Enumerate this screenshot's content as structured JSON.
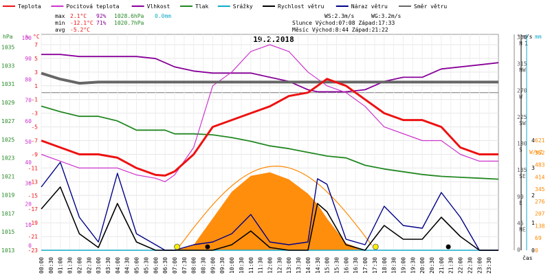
{
  "chart_data": {
    "type": "line",
    "title": "19.2.2018",
    "legend": [
      {
        "label": "Teplota",
        "color": "#ee1111"
      },
      {
        "label": "Pocitová teplota",
        "color": "#cc33cc"
      },
      {
        "label": "Vlhkost",
        "color": "#880099"
      },
      {
        "label": "Tlak",
        "color": "#228822"
      },
      {
        "label": "Srážky",
        "color": "#11aacc"
      },
      {
        "label": "Rychlost větru",
        "color": "#000000"
      },
      {
        "label": "Náraz větru",
        "color": "#000088"
      },
      {
        "label": "Směr větru",
        "color": "#666666"
      }
    ],
    "stats": {
      "max_label": "max",
      "max_temp": "2.1°C",
      "max_hum": "92%",
      "max_press": "1028.6hPa",
      "max_rain": "0.0mm",
      "min_label": "min",
      "min_temp": "-12.1°C",
      "min_hum": "71%",
      "min_press": "1020.7hPa",
      "avg_label": "avg",
      "avg_temp": "-5.2°C"
    },
    "sun_moon": {
      "ws": "WS:2.3m/s",
      "wg": "WG:3.2m/s",
      "sun": "Slunce Východ:07:08  Západ:17:33",
      "moon": "Měsíc  Východ:8:44   Západ:21:22"
    },
    "axes": {
      "hpa_label": "hPa",
      "pct_label": "%",
      "c_label": "°C",
      "deg_label": "°",
      "ms_label": "m/s",
      "mm_label": "mm",
      "wm2_label": "W/m2",
      "time_label": "čas",
      "hpa_ticks": [
        "1035",
        "1033",
        "1031",
        "1029",
        "1027",
        "1025",
        "1023",
        "1021",
        "1019",
        "1017",
        "1015",
        "1013"
      ],
      "pct_ticks": [
        "100",
        "90",
        "80",
        "70",
        "60",
        "50",
        "40",
        "30",
        "20",
        "10",
        "0"
      ],
      "c_ticks": [
        "7",
        "5",
        "3",
        "1",
        "-1",
        "-3",
        "-5",
        "-7",
        "-9",
        "-11",
        "-13",
        "-15",
        "-17",
        "-19",
        "-21",
        "-23"
      ],
      "deg_ticks": [
        "360",
        "315",
        "270",
        "225",
        "180",
        "135",
        "90",
        "45",
        "0"
      ],
      "dir_ticks": [
        "N",
        "NW",
        "W",
        "SW",
        "S",
        "SE",
        "E",
        "NE"
      ],
      "ms_ticks": [
        "4",
        "3",
        "2",
        "1",
        "0"
      ],
      "ms_top": "1",
      "solar_ticks": [
        "621",
        "552",
        "483",
        "414",
        "345",
        "276",
        "207",
        "138",
        "69",
        "0"
      ],
      "time_ticks": [
        "00:00",
        "00:30",
        "01:00",
        "01:30",
        "02:00",
        "02:30",
        "03:00",
        "03:30",
        "04:00",
        "04:30",
        "05:00",
        "05:30",
        "06:00",
        "06:30",
        "07:00",
        "07:30",
        "08:00",
        "08:30",
        "09:00",
        "09:30",
        "10:00",
        "10:30",
        "11:00",
        "11:30",
        "12:00",
        "12:30",
        "13:00",
        "13:30",
        "14:00",
        "14:30",
        "15:00",
        "15:30",
        "16:00",
        "16:30",
        "17:00",
        "17:30",
        "18:00",
        "18:30",
        "19:00",
        "19:30",
        "20:00",
        "20:30",
        "21:00",
        "21:30",
        "22:00",
        "22:30",
        "23:00",
        "23:30"
      ]
    },
    "x_hours": [
      0,
      1,
      2,
      3,
      4,
      5,
      6,
      6.5,
      7,
      8,
      9,
      10,
      11,
      12,
      13,
      14,
      14.5,
      15,
      16,
      17,
      18,
      19,
      20,
      21,
      22,
      23,
      24
    ],
    "series": [
      {
        "name": "Teplota",
        "unit": "°C",
        "values": [
          -7,
          -8,
          -9,
          -9,
          -9.5,
          -11,
          -12,
          -12.1,
          -11.5,
          -9,
          -5,
          -4,
          -3,
          -2,
          -0.5,
          0,
          1,
          2,
          1,
          -1,
          -3,
          -4,
          -4,
          -5,
          -8,
          -9,
          -9
        ]
      },
      {
        "name": "Pocitová teplota",
        "unit": "°C",
        "values": [
          -9,
          -10,
          -11,
          -11,
          -11,
          -12,
          -12.5,
          -13,
          -12,
          -8,
          1,
          3,
          6,
          7,
          6,
          3,
          2,
          1,
          0,
          -2,
          -5,
          -6,
          -7,
          -7,
          -9,
          -10,
          -10
        ]
      },
      {
        "name": "Vlhkost",
        "unit": "%",
        "values": [
          92,
          92,
          91,
          91,
          91,
          91,
          90,
          88,
          86,
          84,
          83,
          83,
          83,
          81,
          79,
          75,
          74,
          74,
          74,
          75,
          79,
          81,
          81,
          85,
          86,
          87,
          88
        ]
      },
      {
        "name": "Tlak",
        "unit": "hPa",
        "values": [
          1028.6,
          1028,
          1027.5,
          1027.5,
          1027,
          1026,
          1026,
          1026,
          1025.6,
          1025.6,
          1025.5,
          1025.2,
          1024.8,
          1024.3,
          1024,
          1023.6,
          1023.4,
          1023.2,
          1023,
          1022.2,
          1021.8,
          1021.5,
          1021.2,
          1021,
          1020.9,
          1020.8,
          1020.7
        ]
      },
      {
        "name": "Srážky",
        "unit": "mm",
        "values": [
          0,
          0,
          0,
          0,
          0,
          0,
          0,
          0,
          0,
          0,
          0,
          0,
          0,
          0,
          0,
          0,
          0,
          0,
          0,
          0,
          0,
          0,
          0,
          0,
          0,
          0,
          0
        ]
      },
      {
        "name": "Směr větru",
        "unit": "°",
        "values": [
          300,
          290,
          283,
          285,
          285,
          285,
          285,
          285,
          285,
          285,
          285,
          285,
          285,
          285,
          285,
          285,
          285,
          285,
          285,
          285,
          285,
          285,
          285,
          285,
          285,
          285,
          285
        ]
      },
      {
        "name": "Náraz větru",
        "unit": "m/s",
        "values": [
          2.3,
          3.2,
          1.2,
          0.3,
          2.8,
          0.6,
          0.2,
          0,
          0,
          0.2,
          0.3,
          0.6,
          1.3,
          0.3,
          0.2,
          0.3,
          2.6,
          2.4,
          0.4,
          0.2,
          1.6,
          0.9,
          0.8,
          2.1,
          1.2,
          0,
          0
        ]
      },
      {
        "name": "Rychlost větru",
        "unit": "m/s",
        "values": [
          1.5,
          2.3,
          0.6,
          0.1,
          1.7,
          0.3,
          0,
          0,
          0,
          0,
          0,
          0.2,
          0.7,
          0.1,
          0,
          0,
          1.7,
          1.4,
          0.2,
          0,
          0.9,
          0.4,
          0.4,
          1.2,
          0.5,
          0,
          0
        ]
      },
      {
        "name": "Sluneční záření",
        "unit": "W/m2",
        "values": [
          0,
          0,
          0,
          0,
          0,
          0,
          0,
          0,
          0,
          30,
          180,
          330,
          420,
          440,
          400,
          320,
          260,
          180,
          40,
          0,
          0,
          0,
          0,
          0,
          0,
          0,
          0
        ]
      }
    ]
  }
}
